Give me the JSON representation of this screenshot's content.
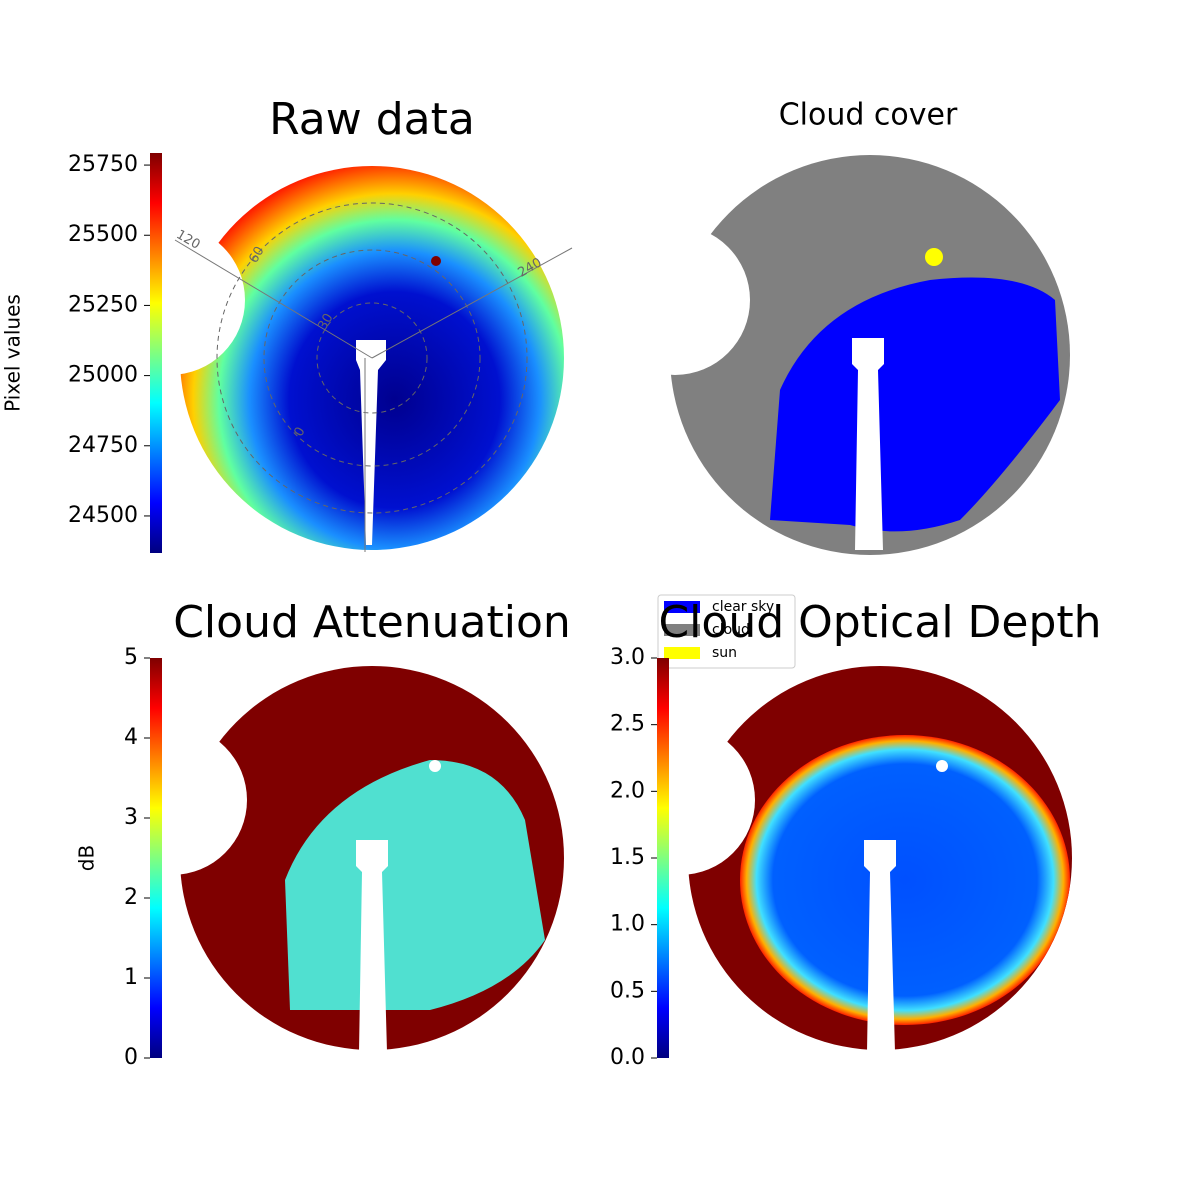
{
  "chart_data": [
    {
      "type": "image",
      "title": "Raw data",
      "ylabel": "Pixel values",
      "colormap": "jet",
      "ylim": [
        24368,
        25793
      ],
      "yticks": [
        24500,
        24750,
        25000,
        25250,
        25500,
        25750
      ],
      "annotations": [
        "120",
        "60",
        "30",
        "0",
        "240"
      ]
    },
    {
      "type": "image",
      "title": "Cloud cover",
      "legend": "lower left",
      "series": [
        {
          "name": "clear sky",
          "color": "#0000ff"
        },
        {
          "name": "cloud",
          "color": "#808080"
        },
        {
          "name": "sun",
          "color": "#ffff00"
        }
      ]
    },
    {
      "type": "image",
      "title": "Cloud Attenuation",
      "ylabel": "dB",
      "colormap": "jet",
      "ylim": [
        0,
        5
      ],
      "yticks": [
        0,
        1,
        2,
        3,
        4,
        5
      ]
    },
    {
      "type": "image",
      "title": "Cloud Optical Depth",
      "colormap": "jet",
      "ylim": [
        0,
        3
      ],
      "yticks": [
        {
          "value": 0,
          "label": "0.0"
        },
        0.5,
        {
          "value": 1,
          "label": "1.0"
        },
        1.5,
        {
          "value": 2,
          "label": "2.0"
        },
        2.5,
        {
          "value": 3,
          "label": "3.0"
        }
      ]
    }
  ]
}
